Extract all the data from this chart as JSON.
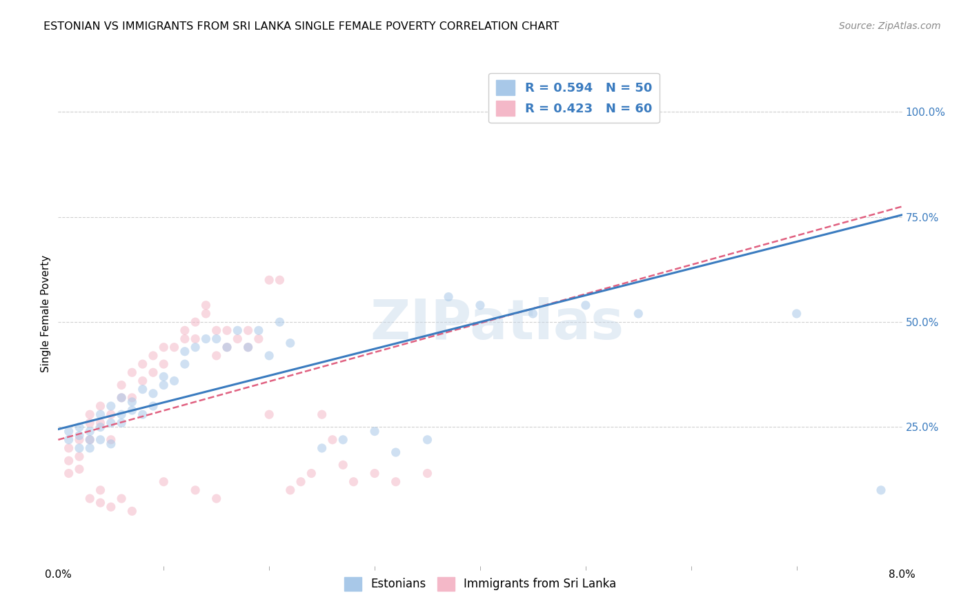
{
  "title": "ESTONIAN VS IMMIGRANTS FROM SRI LANKA SINGLE FEMALE POVERTY CORRELATION CHART",
  "source": "Source: ZipAtlas.com",
  "ylabel": "Single Female Poverty",
  "ytick_labels": [
    "25.0%",
    "50.0%",
    "75.0%",
    "100.0%"
  ],
  "legend_1": "R = 0.594   N = 50",
  "legend_2": "R = 0.423   N = 60",
  "legend_label_1": "Estonians",
  "legend_label_2": "Immigrants from Sri Lanka",
  "watermark": "ZIPatlas",
  "color_blue": "#a8c8e8",
  "color_pink": "#f4b8c8",
  "color_blue_line": "#3a7bbf",
  "color_pink_line": "#e06080",
  "xlim": [
    0.0,
    0.08
  ],
  "ylim": [
    -0.08,
    1.12
  ],
  "blue_scatter_x": [
    0.001,
    0.001,
    0.002,
    0.002,
    0.002,
    0.003,
    0.003,
    0.003,
    0.004,
    0.004,
    0.004,
    0.005,
    0.005,
    0.005,
    0.006,
    0.006,
    0.006,
    0.007,
    0.007,
    0.008,
    0.008,
    0.009,
    0.009,
    0.01,
    0.01,
    0.011,
    0.012,
    0.012,
    0.013,
    0.014,
    0.015,
    0.016,
    0.017,
    0.018,
    0.019,
    0.02,
    0.021,
    0.022,
    0.025,
    0.027,
    0.03,
    0.032,
    0.035,
    0.037,
    0.04,
    0.045,
    0.05,
    0.055,
    0.07,
    0.078
  ],
  "blue_scatter_y": [
    0.22,
    0.24,
    0.2,
    0.23,
    0.25,
    0.2,
    0.22,
    0.24,
    0.22,
    0.25,
    0.28,
    0.21,
    0.26,
    0.3,
    0.26,
    0.28,
    0.32,
    0.29,
    0.31,
    0.28,
    0.34,
    0.3,
    0.33,
    0.35,
    0.37,
    0.36,
    0.4,
    0.43,
    0.44,
    0.46,
    0.46,
    0.44,
    0.48,
    0.44,
    0.48,
    0.42,
    0.5,
    0.45,
    0.2,
    0.22,
    0.24,
    0.19,
    0.22,
    0.56,
    0.54,
    0.52,
    0.54,
    0.52,
    0.52,
    0.1
  ],
  "pink_scatter_x": [
    0.001,
    0.001,
    0.001,
    0.002,
    0.002,
    0.002,
    0.003,
    0.003,
    0.003,
    0.004,
    0.004,
    0.005,
    0.005,
    0.006,
    0.006,
    0.007,
    0.007,
    0.008,
    0.008,
    0.009,
    0.009,
    0.01,
    0.01,
    0.011,
    0.012,
    0.012,
    0.013,
    0.013,
    0.014,
    0.014,
    0.015,
    0.015,
    0.016,
    0.016,
    0.017,
    0.018,
    0.018,
    0.019,
    0.02,
    0.021,
    0.022,
    0.023,
    0.024,
    0.025,
    0.026,
    0.027,
    0.028,
    0.03,
    0.032,
    0.035,
    0.003,
    0.004,
    0.004,
    0.005,
    0.006,
    0.007,
    0.01,
    0.013,
    0.015,
    0.02
  ],
  "pink_scatter_y": [
    0.14,
    0.17,
    0.2,
    0.15,
    0.18,
    0.22,
    0.22,
    0.26,
    0.28,
    0.26,
    0.3,
    0.22,
    0.28,
    0.32,
    0.35,
    0.32,
    0.38,
    0.36,
    0.4,
    0.38,
    0.42,
    0.4,
    0.44,
    0.44,
    0.46,
    0.48,
    0.46,
    0.5,
    0.52,
    0.54,
    0.42,
    0.48,
    0.44,
    0.48,
    0.46,
    0.44,
    0.48,
    0.46,
    0.6,
    0.6,
    0.1,
    0.12,
    0.14,
    0.28,
    0.22,
    0.16,
    0.12,
    0.14,
    0.12,
    0.14,
    0.08,
    0.07,
    0.1,
    0.06,
    0.08,
    0.05,
    0.12,
    0.1,
    0.08,
    0.28
  ],
  "blue_line_x": [
    0.0,
    0.08
  ],
  "blue_line_y": [
    0.245,
    0.755
  ],
  "pink_line_x": [
    0.0,
    0.08
  ],
  "pink_line_y": [
    0.22,
    0.775
  ],
  "marker_size": 90,
  "alpha_scatter": 0.55,
  "background_color": "#ffffff",
  "title_fontsize": 11.5,
  "tick_fontsize": 11,
  "ylabel_fontsize": 11,
  "source_fontsize": 10
}
